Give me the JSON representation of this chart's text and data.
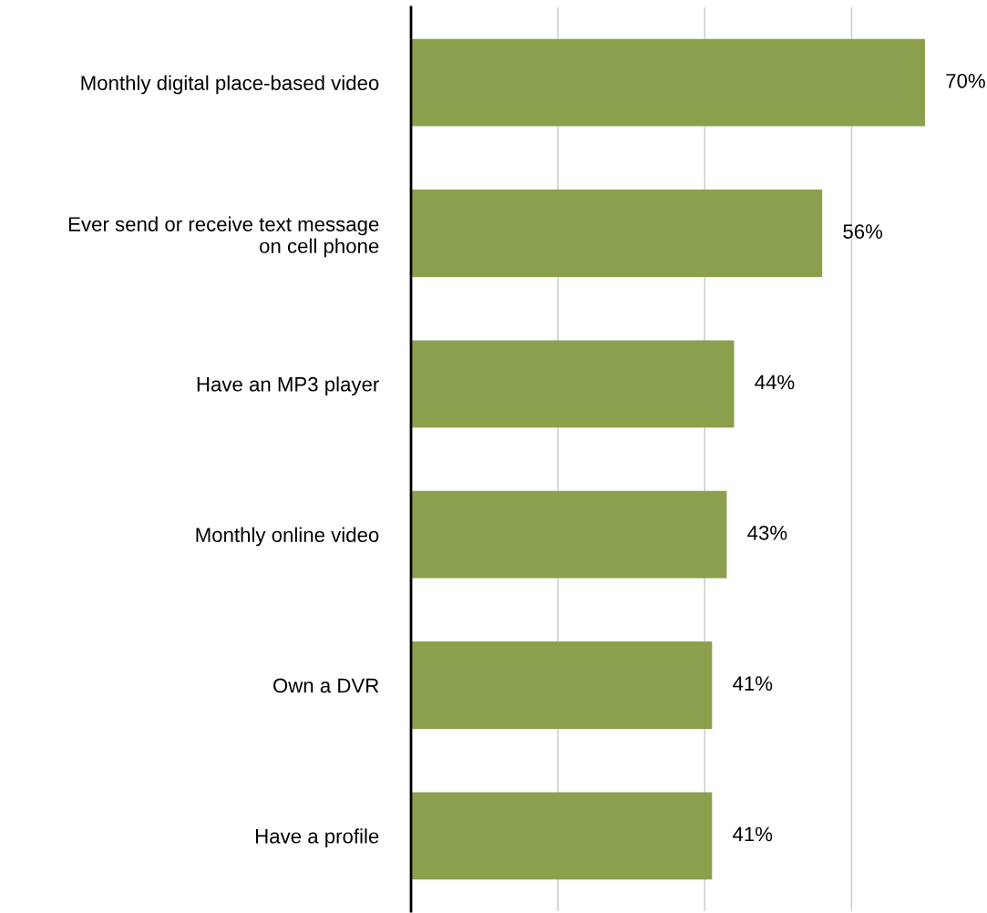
{
  "chart_data": {
    "type": "bar",
    "orientation": "horizontal",
    "categories": [
      "Monthly digital place-based video",
      "Ever send or receive text message\non cell phone",
      "Have an MP3 player",
      "Monthly online video",
      "Own a DVR",
      "Have a profile"
    ],
    "values": [
      70,
      56,
      44,
      43,
      41,
      41
    ],
    "value_labels": [
      "70%",
      "56%",
      "44%",
      "43%",
      "41%",
      "41%"
    ],
    "color": "#8ba04c",
    "xticks": [
      {
        "value": 20,
        "label": null
      },
      {
        "value": 40,
        "label": null
      },
      {
        "value": 60,
        "label": null
      }
    ],
    "tick_labels": "y",
    "grid": "x",
    "legend": false
  }
}
